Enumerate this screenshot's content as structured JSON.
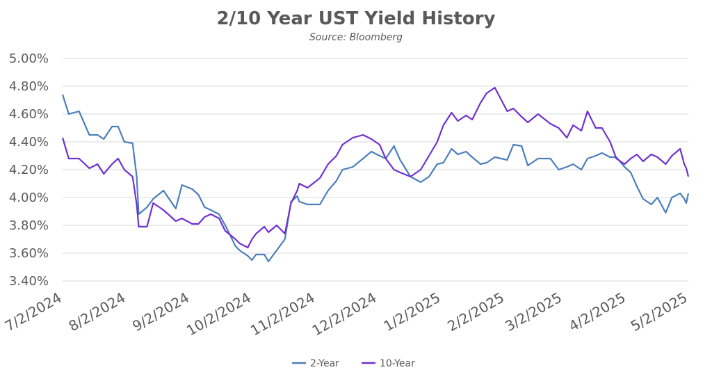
{
  "chart_data": {
    "type": "line",
    "title": "2/10 Year UST Yield History",
    "subtitle": "Source: Bloomberg",
    "xlabel": "",
    "ylabel": "",
    "x_ticks": [
      "7/2/2024",
      "8/2/2024",
      "9/2/2024",
      "10/2/2024",
      "11/2/2024",
      "12/2/2024",
      "1/2/2025",
      "2/2/2025",
      "3/2/2025",
      "4/2/2025",
      "5/2/2025"
    ],
    "y_ticks": [
      "3.40%",
      "3.60%",
      "3.80%",
      "4.00%",
      "4.20%",
      "4.40%",
      "4.60%",
      "4.80%",
      "5.00%"
    ],
    "ylim": [
      3.4,
      5.0
    ],
    "grid": true,
    "legend_position": "bottom",
    "series": [
      {
        "name": "2-Year",
        "color": "#4a7ebb",
        "points": [
          [
            "7/2/2024",
            4.74
          ],
          [
            "7/5/2024",
            4.6
          ],
          [
            "7/10/2024",
            4.62
          ],
          [
            "7/15/2024",
            4.45
          ],
          [
            "7/19/2024",
            4.45
          ],
          [
            "7/22/2024",
            4.42
          ],
          [
            "7/26/2024",
            4.51
          ],
          [
            "7/29/2024",
            4.51
          ],
          [
            "8/1/2024",
            4.4
          ],
          [
            "8/5/2024",
            4.39
          ],
          [
            "8/7/2024",
            4.15
          ],
          [
            "8/8/2024",
            3.88
          ],
          [
            "8/12/2024",
            3.93
          ],
          [
            "8/15/2024",
            3.99
          ],
          [
            "8/20/2024",
            4.05
          ],
          [
            "8/26/2024",
            3.92
          ],
          [
            "8/29/2024",
            4.09
          ],
          [
            "9/3/2024",
            4.06
          ],
          [
            "9/6/2024",
            4.02
          ],
          [
            "9/9/2024",
            3.93
          ],
          [
            "9/12/2024",
            3.91
          ],
          [
            "9/16/2024",
            3.88
          ],
          [
            "9/19/2024",
            3.8
          ],
          [
            "9/24/2024",
            3.65
          ],
          [
            "9/26/2024",
            3.62
          ],
          [
            "9/30/2024",
            3.58
          ],
          [
            "10/2/2024",
            3.55
          ],
          [
            "10/4/2024",
            3.59
          ],
          [
            "10/8/2024",
            3.59
          ],
          [
            "10/10/2024",
            3.54
          ],
          [
            "10/14/2024",
            3.62
          ],
          [
            "10/18/2024",
            3.7
          ],
          [
            "10/21/2024",
            3.97
          ],
          [
            "10/24/2024",
            4.01
          ],
          [
            "10/25/2024",
            3.97
          ],
          [
            "10/29/2024",
            3.95
          ],
          [
            "11/4/2024",
            3.95
          ],
          [
            "11/8/2024",
            4.05
          ],
          [
            "11/12/2024",
            4.12
          ],
          [
            "11/15/2024",
            4.2
          ],
          [
            "11/20/2024",
            4.22
          ],
          [
            "11/25/2024",
            4.28
          ],
          [
            "11/29/2024",
            4.33
          ],
          [
            "12/3/2024",
            4.3
          ],
          [
            "12/6/2024",
            4.28
          ],
          [
            "12/10/2024",
            4.37
          ],
          [
            "12/13/2024",
            4.27
          ],
          [
            "12/18/2024",
            4.15
          ],
          [
            "12/23/2024",
            4.11
          ],
          [
            "12/27/2024",
            4.15
          ],
          [
            "12/31/2024",
            4.24
          ],
          [
            "1/3/2025",
            4.25
          ],
          [
            "1/7/2025",
            4.35
          ],
          [
            "1/10/2025",
            4.31
          ],
          [
            "1/14/2025",
            4.33
          ],
          [
            "1/17/2025",
            4.29
          ],
          [
            "1/21/2025",
            4.24
          ],
          [
            "1/24/2025",
            4.25
          ],
          [
            "1/28/2025",
            4.29
          ],
          [
            "2/3/2025",
            4.27
          ],
          [
            "2/6/2025",
            4.38
          ],
          [
            "2/10/2025",
            4.37
          ],
          [
            "2/13/2025",
            4.23
          ],
          [
            "2/18/2025",
            4.28
          ],
          [
            "2/24/2025",
            4.28
          ],
          [
            "2/28/2025",
            4.2
          ],
          [
            "3/4/2025",
            4.22
          ],
          [
            "3/7/2025",
            4.24
          ],
          [
            "3/11/2025",
            4.2
          ],
          [
            "3/14/2025",
            4.28
          ],
          [
            "3/18/2025",
            4.3
          ],
          [
            "3/21/2025",
            4.32
          ],
          [
            "3/25/2025",
            4.29
          ],
          [
            "3/28/2025",
            4.29
          ],
          [
            "4/1/2025",
            4.22
          ],
          [
            "4/4/2025",
            4.18
          ],
          [
            "4/7/2025",
            4.08
          ],
          [
            "4/10/2025",
            3.99
          ],
          [
            "4/14/2025",
            3.95
          ],
          [
            "4/17/2025",
            4.0
          ],
          [
            "4/21/2025",
            3.89
          ],
          [
            "4/24/2025",
            4.0
          ],
          [
            "4/28/2025",
            4.03
          ],
          [
            "4/30/2025",
            3.99
          ],
          [
            "5/1/2025",
            3.96
          ],
          [
            "5/2/2025",
            4.03
          ]
        ]
      },
      {
        "name": "10-Year",
        "color": "#7030d0",
        "points": [
          [
            "7/2/2024",
            4.43
          ],
          [
            "7/5/2024",
            4.28
          ],
          [
            "7/10/2024",
            4.28
          ],
          [
            "7/15/2024",
            4.21
          ],
          [
            "7/19/2024",
            4.24
          ],
          [
            "7/22/2024",
            4.17
          ],
          [
            "7/26/2024",
            4.24
          ],
          [
            "7/29/2024",
            4.28
          ],
          [
            "8/1/2024",
            4.2
          ],
          [
            "8/5/2024",
            4.15
          ],
          [
            "8/7/2024",
            3.95
          ],
          [
            "8/8/2024",
            3.79
          ],
          [
            "8/12/2024",
            3.79
          ],
          [
            "8/15/2024",
            3.96
          ],
          [
            "8/20/2024",
            3.91
          ],
          [
            "8/26/2024",
            3.83
          ],
          [
            "8/29/2024",
            3.85
          ],
          [
            "9/3/2024",
            3.81
          ],
          [
            "9/6/2024",
            3.81
          ],
          [
            "9/9/2024",
            3.86
          ],
          [
            "9/12/2024",
            3.88
          ],
          [
            "9/16/2024",
            3.85
          ],
          [
            "9/19/2024",
            3.76
          ],
          [
            "9/24/2024",
            3.7
          ],
          [
            "9/26/2024",
            3.67
          ],
          [
            "9/30/2024",
            3.64
          ],
          [
            "10/2/2024",
            3.7
          ],
          [
            "10/4/2024",
            3.74
          ],
          [
            "10/8/2024",
            3.79
          ],
          [
            "10/10/2024",
            3.75
          ],
          [
            "10/14/2024",
            3.8
          ],
          [
            "10/18/2024",
            3.74
          ],
          [
            "10/21/2024",
            3.96
          ],
          [
            "10/24/2024",
            4.05
          ],
          [
            "10/25/2024",
            4.1
          ],
          [
            "10/29/2024",
            4.07
          ],
          [
            "11/4/2024",
            4.14
          ],
          [
            "11/8/2024",
            4.24
          ],
          [
            "11/12/2024",
            4.3
          ],
          [
            "11/15/2024",
            4.38
          ],
          [
            "11/20/2024",
            4.43
          ],
          [
            "11/25/2024",
            4.45
          ],
          [
            "11/29/2024",
            4.42
          ],
          [
            "12/3/2024",
            4.38
          ],
          [
            "12/6/2024",
            4.28
          ],
          [
            "12/10/2024",
            4.2
          ],
          [
            "12/13/2024",
            4.18
          ],
          [
            "12/18/2024",
            4.15
          ],
          [
            "12/23/2024",
            4.2
          ],
          [
            "12/27/2024",
            4.3
          ],
          [
            "12/31/2024",
            4.4
          ],
          [
            "1/3/2025",
            4.52
          ],
          [
            "1/7/2025",
            4.61
          ],
          [
            "1/10/2025",
            4.55
          ],
          [
            "1/14/2025",
            4.59
          ],
          [
            "1/17/2025",
            4.56
          ],
          [
            "1/21/2025",
            4.68
          ],
          [
            "1/24/2025",
            4.75
          ],
          [
            "1/28/2025",
            4.79
          ],
          [
            "2/3/2025",
            4.62
          ],
          [
            "2/6/2025",
            4.64
          ],
          [
            "2/10/2025",
            4.58
          ],
          [
            "2/13/2025",
            4.54
          ],
          [
            "2/18/2025",
            4.6
          ],
          [
            "2/24/2025",
            4.53
          ],
          [
            "2/28/2025",
            4.5
          ],
          [
            "3/4/2025",
            4.43
          ],
          [
            "3/7/2025",
            4.52
          ],
          [
            "3/11/2025",
            4.48
          ],
          [
            "3/14/2025",
            4.62
          ],
          [
            "3/18/2025",
            4.5
          ],
          [
            "3/21/2025",
            4.5
          ],
          [
            "3/25/2025",
            4.4
          ],
          [
            "3/28/2025",
            4.28
          ],
          [
            "4/1/2025",
            4.24
          ],
          [
            "4/4/2025",
            4.28
          ],
          [
            "4/7/2025",
            4.31
          ],
          [
            "4/10/2025",
            4.26
          ],
          [
            "4/14/2025",
            4.31
          ],
          [
            "4/17/2025",
            4.29
          ],
          [
            "4/21/2025",
            4.24
          ],
          [
            "4/24/2025",
            4.3
          ],
          [
            "4/28/2025",
            4.35
          ],
          [
            "4/30/2025",
            4.24
          ],
          [
            "5/1/2025",
            4.21
          ],
          [
            "5/2/2025",
            4.15
          ]
        ]
      }
    ]
  }
}
